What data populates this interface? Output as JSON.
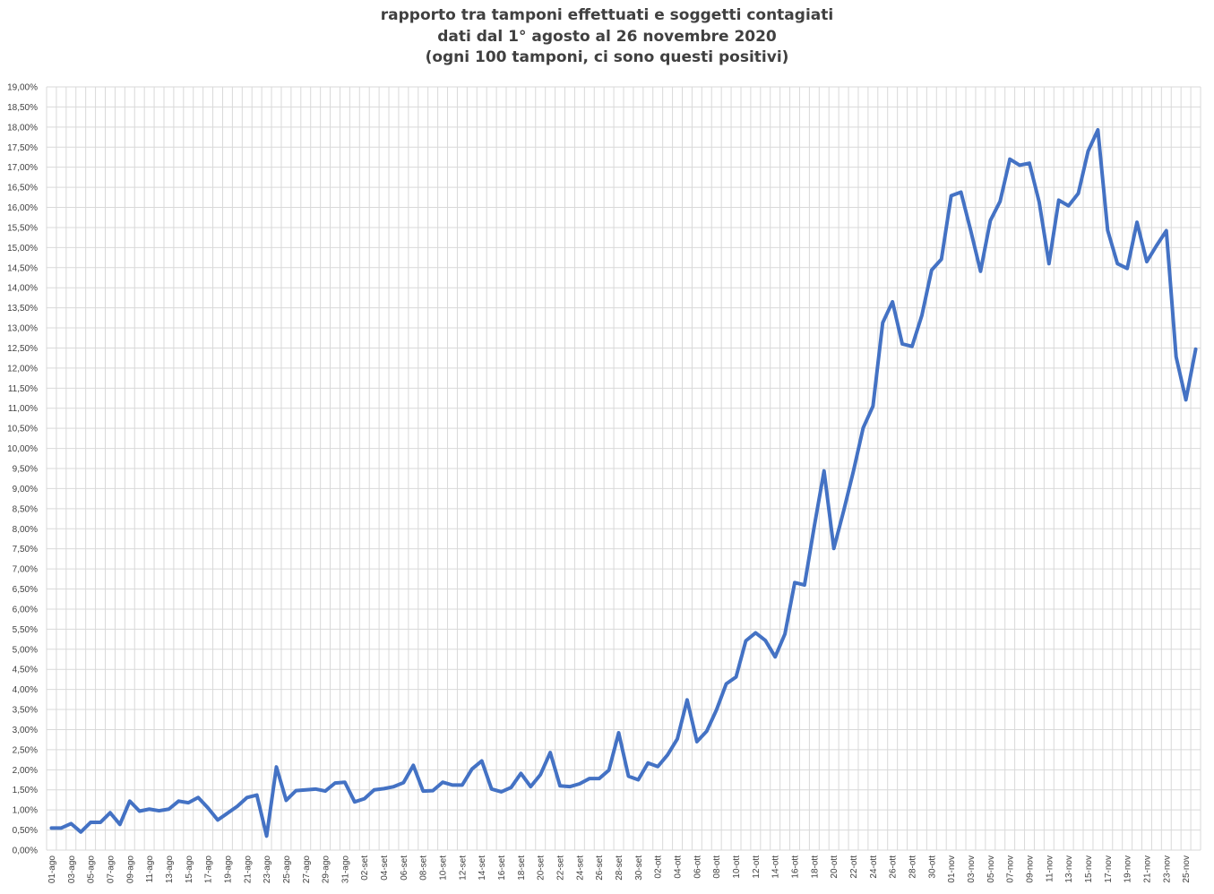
{
  "colors": {
    "line": "#4472C4",
    "grid": "#D9D9D9",
    "text": "#404040"
  },
  "chart_data": {
    "type": "line",
    "title": [
      "rapporto tra tamponi effettuati e soggetti contagiati",
      "dati dal 1° agosto al 26 novembre 2020",
      "(ogni 100 tamponi, ci sono questi positivi)"
    ],
    "xlabel": "",
    "ylabel": "",
    "ylim": [
      0,
      19
    ],
    "ytick_step": 0.5,
    "ytick_format": "percent_comma_2dp",
    "grid": true,
    "legend": "none",
    "x_labels": [
      "01-ago",
      "03-ago",
      "05-ago",
      "07-ago",
      "09-ago",
      "11-ago",
      "13-ago",
      "15-ago",
      "17-ago",
      "19-ago",
      "21-ago",
      "23-ago",
      "25-ago",
      "27-ago",
      "29-ago",
      "31-ago",
      "02-set",
      "04-set",
      "06-set",
      "08-set",
      "10-set",
      "12-set",
      "14-set",
      "16-set",
      "18-set",
      "20-set",
      "22-set",
      "24-set",
      "26-set",
      "28-set",
      "30-set",
      "02-ott",
      "04-ott",
      "06-ott",
      "08-ott",
      "10-ott",
      "12-ott",
      "14-ott",
      "16-ott",
      "18-ott",
      "20-ott",
      "22-ott",
      "24-ott",
      "26-ott",
      "28-ott",
      "30-ott",
      "01-nov",
      "03-nov",
      "05-nov",
      "07-nov",
      "09-nov",
      "11-nov",
      "13-nov",
      "15-nov",
      "17-nov",
      "19-nov",
      "21-nov",
      "23-nov",
      "25-nov"
    ],
    "series": [
      {
        "values": [
          0.55,
          0.55,
          0.66,
          0.45,
          0.69,
          0.69,
          0.93,
          0.64,
          1.22,
          0.97,
          1.02,
          0.98,
          1.02,
          1.22,
          1.18,
          1.31,
          1.05,
          0.75,
          0.92,
          1.09,
          1.31,
          1.37,
          0.35,
          2.07,
          1.24,
          1.48,
          1.5,
          1.52,
          1.47,
          1.67,
          1.69,
          1.2,
          1.28,
          1.5,
          1.53,
          1.58,
          1.68,
          2.11,
          1.47,
          1.48,
          1.69,
          1.62,
          1.62,
          2.02,
          2.22,
          1.52,
          1.45,
          1.56,
          1.91,
          1.58,
          1.88,
          2.43,
          1.6,
          1.58,
          1.65,
          1.78,
          1.78,
          1.99,
          2.92,
          1.84,
          1.75,
          2.17,
          2.08,
          2.37,
          2.77,
          3.74,
          2.7,
          2.96,
          3.49,
          4.14,
          4.31,
          5.21,
          5.41,
          5.22,
          4.81,
          5.38,
          6.66,
          6.6,
          8.06,
          9.44,
          7.51,
          8.44,
          9.43,
          10.51,
          11.05,
          13.13,
          13.65,
          12.6,
          12.54,
          13.31,
          14.44,
          14.71,
          16.29,
          16.38,
          15.42,
          14.41,
          15.67,
          16.15,
          17.2,
          17.05,
          17.1,
          16.13,
          14.6,
          16.18,
          16.04,
          16.35,
          17.4,
          17.93,
          15.43,
          14.6,
          14.48,
          15.63,
          14.65,
          15.05,
          15.42,
          12.28,
          11.21,
          12.47
        ]
      }
    ]
  }
}
